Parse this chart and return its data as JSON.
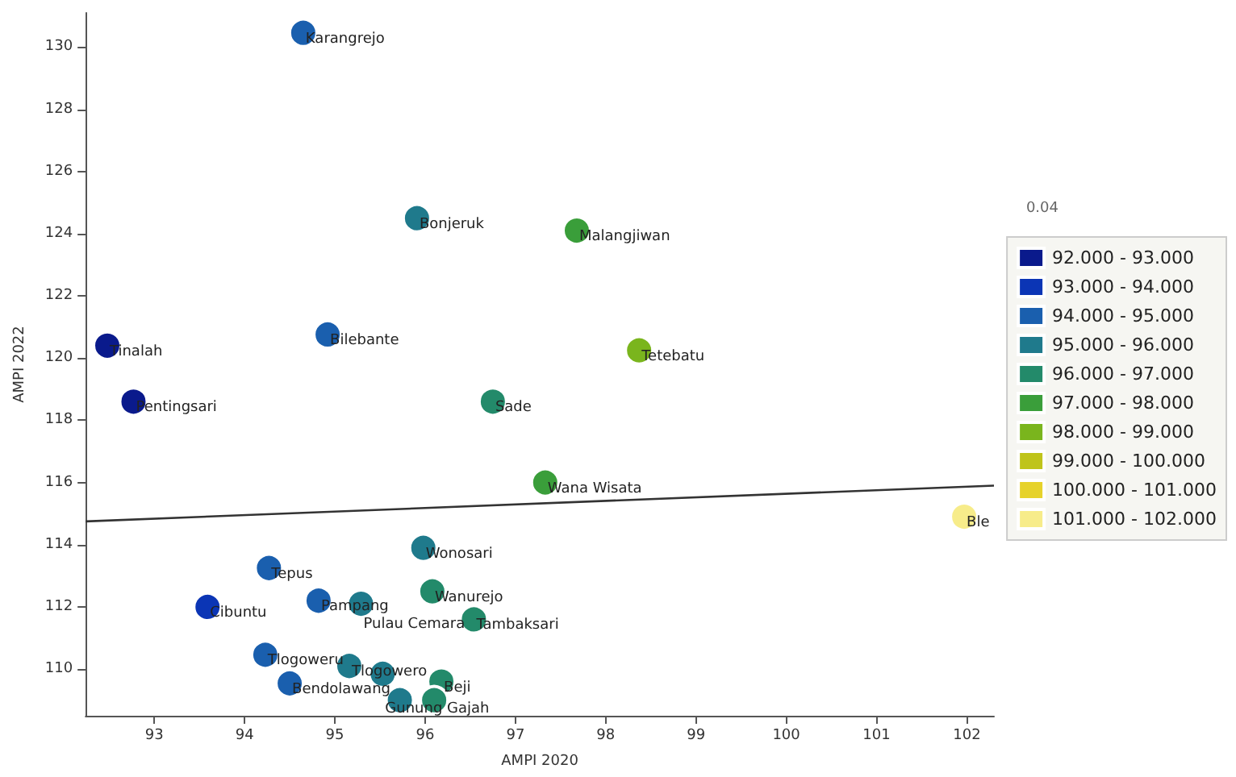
{
  "chart_data": {
    "type": "scatter",
    "xlabel": "AMPI 2020",
    "ylabel": "AMPI 2022",
    "xlim": [
      92.24,
      102.3
    ],
    "xticks": [
      93,
      94,
      95,
      96,
      97,
      98,
      99,
      100,
      101,
      102
    ],
    "ylim": [
      108.5,
      131.1
    ],
    "yticks": [
      110,
      112,
      114,
      116,
      118,
      120,
      122,
      124,
      126,
      128,
      130
    ],
    "legend": "right",
    "marker": "circle",
    "annotations": [
      "0.04"
    ],
    "series": [
      {
        "name": "92.000 - 93.000",
        "color": "#0a1a8c",
        "x": [
          92.48,
          92.77
        ],
        "values": [
          120.4,
          118.6
        ],
        "value_labels": [
          "Tinalah",
          "Pentingsari"
        ]
      },
      {
        "name": "93.000 - 94.000",
        "color": "#0b35b5",
        "x": [
          93.59
        ],
        "values": [
          112.0
        ],
        "value_labels": [
          "Cibuntu"
        ]
      },
      {
        "name": "94.000 - 95.000",
        "color": "#1a5fae",
        "x": [
          94.65,
          94.92,
          94.27,
          94.82,
          94.23,
          94.5
        ],
        "values": [
          130.46,
          120.76,
          113.25,
          112.2,
          110.46,
          109.54
        ],
        "value_labels": [
          "Karangrejo",
          "Bilebante",
          "Tepus",
          "Pampang",
          "Tlogoweru",
          "Bendolawang"
        ]
      },
      {
        "name": "95.000 - 96.000",
        "color": "#1f7a8c",
        "x": [
          95.91,
          95.98,
          95.29,
          95.16,
          95.53,
          95.72
        ],
        "values": [
          124.5,
          113.9,
          112.1,
          110.1,
          109.85,
          109.0
        ],
        "value_labels": [
          "Bonjeruk",
          "Wonosari",
          "Pulau Cemara",
          "Tlogowero",
          "Gunung Gajah",
          null
        ]
      },
      {
        "name": "96.000 - 97.000",
        "color": "#238a6a",
        "x": [
          96.75,
          96.08,
          96.54,
          96.18,
          96.1
        ],
        "values": [
          118.6,
          112.5,
          111.6,
          109.6,
          109.0
        ],
        "value_labels": [
          "Sade",
          "Wanurejo",
          "Tambaksari",
          "Beji",
          null
        ]
      },
      {
        "name": "97.000 - 98.000",
        "color": "#3a9e3a",
        "x": [
          97.68,
          97.33
        ],
        "values": [
          124.1,
          116.0
        ],
        "value_labels": [
          "Malangjiwan",
          "Wana Wisata"
        ]
      },
      {
        "name": "98.000 - 99.000",
        "color": "#7ab51d",
        "x": [
          98.37
        ],
        "values": [
          120.25
        ],
        "value_labels": [
          "Tetebatu"
        ]
      },
      {
        "name": "99.000 - 100.000",
        "color": "#bfc41a"
      },
      {
        "name": "100.000 - 101.000",
        "color": "#e6d22a"
      },
      {
        "name": "101.000 - 102.000",
        "color": "#f7ec8a",
        "x": [
          101.97
        ],
        "values": [
          114.9
        ],
        "value_labels": [
          "Ble"
        ]
      },
      {
        "type": "line",
        "marker": "none",
        "color": "#333333",
        "x": [
          92.24,
          102.3
        ],
        "values": [
          114.75,
          115.9
        ]
      }
    ]
  }
}
